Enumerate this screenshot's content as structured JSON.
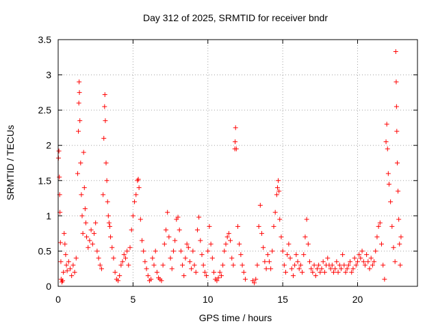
{
  "chart_data": {
    "type": "scatter",
    "title": "Day 312 of 2025, SRMTID for receiver bndr",
    "xlabel": "GPS time / hours",
    "ylabel": "SRMTID / TECUs",
    "xlim": [
      0,
      24
    ],
    "ylim": [
      0,
      3.5
    ],
    "x_ticks": [
      0,
      5,
      10,
      15,
      20
    ],
    "x_tick_labels": [
      "0",
      "5",
      "10",
      "15",
      "20"
    ],
    "y_ticks": [
      0,
      0.5,
      1,
      1.5,
      2,
      2.5,
      3,
      3.5
    ],
    "y_tick_labels": [
      "0",
      "0.5",
      "1",
      "1.5",
      "2",
      "2.5",
      "3",
      "3.5"
    ],
    "grid": true,
    "marker": "+",
    "marker_color": "#ff0000",
    "series": [
      {
        "name": "SRMTID",
        "points": [
          [
            0.02,
            1.82
          ],
          [
            0.05,
            1.92
          ],
          [
            0.08,
            1.55
          ],
          [
            0.1,
            1.3
          ],
          [
            0.12,
            1.05
          ],
          [
            0.15,
            0.62
          ],
          [
            0.18,
            0.35
          ],
          [
            0.2,
            0.1
          ],
          [
            0.25,
            0.06
          ],
          [
            0.3,
            0.08
          ],
          [
            0.35,
            0.2
          ],
          [
            0.4,
            0.75
          ],
          [
            0.45,
            0.6
          ],
          [
            0.5,
            0.45
          ],
          [
            0.55,
            0.3
          ],
          [
            0.6,
            0.22
          ],
          [
            0.7,
            0.35
          ],
          [
            0.8,
            0.25
          ],
          [
            0.9,
            0.15
          ],
          [
            1.0,
            0.3
          ],
          [
            1.1,
            0.2
          ],
          [
            1.2,
            0.4
          ],
          [
            1.3,
            1.6
          ],
          [
            1.35,
            2.2
          ],
          [
            1.38,
            2.6
          ],
          [
            1.4,
            2.9
          ],
          [
            1.42,
            2.75
          ],
          [
            1.45,
            2.35
          ],
          [
            1.5,
            1.75
          ],
          [
            1.55,
            1.3
          ],
          [
            1.6,
            1.0
          ],
          [
            1.65,
            0.75
          ],
          [
            1.7,
            1.9
          ],
          [
            1.75,
            1.4
          ],
          [
            1.8,
            1.1
          ],
          [
            1.85,
            0.9
          ],
          [
            1.9,
            0.7
          ],
          [
            2.0,
            0.55
          ],
          [
            2.1,
            0.65
          ],
          [
            2.2,
            0.8
          ],
          [
            2.3,
            0.6
          ],
          [
            2.4,
            0.75
          ],
          [
            2.5,
            0.9
          ],
          [
            2.6,
            0.5
          ],
          [
            2.7,
            0.4
          ],
          [
            2.8,
            0.3
          ],
          [
            2.9,
            0.25
          ],
          [
            3.0,
            1.3
          ],
          [
            3.05,
            2.1
          ],
          [
            3.1,
            2.55
          ],
          [
            3.12,
            2.72
          ],
          [
            3.15,
            2.35
          ],
          [
            3.2,
            1.75
          ],
          [
            3.25,
            1.5
          ],
          [
            3.3,
            1.2
          ],
          [
            3.35,
            1.0
          ],
          [
            3.4,
            0.9
          ],
          [
            3.45,
            0.85
          ],
          [
            3.5,
            0.7
          ],
          [
            3.6,
            0.55
          ],
          [
            3.7,
            0.4
          ],
          [
            3.8,
            0.2
          ],
          [
            3.9,
            0.1
          ],
          [
            4.0,
            0.08
          ],
          [
            4.1,
            0.15
          ],
          [
            4.2,
            0.3
          ],
          [
            4.3,
            0.35
          ],
          [
            4.4,
            0.45
          ],
          [
            4.5,
            0.4
          ],
          [
            4.6,
            0.5
          ],
          [
            4.7,
            0.3
          ],
          [
            4.8,
            0.55
          ],
          [
            4.9,
            0.8
          ],
          [
            5.0,
            1.0
          ],
          [
            5.1,
            1.2
          ],
          [
            5.2,
            1.3
          ],
          [
            5.3,
            1.5
          ],
          [
            5.35,
            1.52
          ],
          [
            5.4,
            1.4
          ],
          [
            5.5,
            0.95
          ],
          [
            5.6,
            0.65
          ],
          [
            5.7,
            0.5
          ],
          [
            5.8,
            0.35
          ],
          [
            5.9,
            0.25
          ],
          [
            6.0,
            0.15
          ],
          [
            6.1,
            0.08
          ],
          [
            6.2,
            0.1
          ],
          [
            6.3,
            0.4
          ],
          [
            6.4,
            0.3
          ],
          [
            6.5,
            0.5
          ],
          [
            6.6,
            0.2
          ],
          [
            6.7,
            0.12
          ],
          [
            6.8,
            0.1
          ],
          [
            6.9,
            0.08
          ],
          [
            7.0,
            0.3
          ],
          [
            7.1,
            0.6
          ],
          [
            7.2,
            0.8
          ],
          [
            7.3,
            1.05
          ],
          [
            7.4,
            0.7
          ],
          [
            7.5,
            0.4
          ],
          [
            7.6,
            0.25
          ],
          [
            7.7,
            0.5
          ],
          [
            7.8,
            0.65
          ],
          [
            7.9,
            0.95
          ],
          [
            8.0,
            0.98
          ],
          [
            8.1,
            0.8
          ],
          [
            8.2,
            0.5
          ],
          [
            8.3,
            0.3
          ],
          [
            8.4,
            0.15
          ],
          [
            8.5,
            0.4
          ],
          [
            8.6,
            0.6
          ],
          [
            8.7,
            0.55
          ],
          [
            8.8,
            0.35
          ],
          [
            8.9,
            0.25
          ],
          [
            9.0,
            0.5
          ],
          [
            9.1,
            0.3
          ],
          [
            9.2,
            0.2
          ],
          [
            9.3,
            0.8
          ],
          [
            9.4,
            0.98
          ],
          [
            9.5,
            0.65
          ],
          [
            9.6,
            0.45
          ],
          [
            9.7,
            0.3
          ],
          [
            9.8,
            0.2
          ],
          [
            9.9,
            0.15
          ],
          [
            10.0,
            0.5
          ],
          [
            10.1,
            0.85
          ],
          [
            10.2,
            0.6
          ],
          [
            10.3,
            0.4
          ],
          [
            10.4,
            0.2
          ],
          [
            10.5,
            0.1
          ],
          [
            10.6,
            0.08
          ],
          [
            10.7,
            0.12
          ],
          [
            10.8,
            0.2
          ],
          [
            10.9,
            0.15
          ],
          [
            11.0,
            0.3
          ],
          [
            11.1,
            0.5
          ],
          [
            11.2,
            0.6
          ],
          [
            11.3,
            0.7
          ],
          [
            11.4,
            0.75
          ],
          [
            11.5,
            0.65
          ],
          [
            11.6,
            0.4
          ],
          [
            11.7,
            0.3
          ],
          [
            11.8,
            1.95
          ],
          [
            11.82,
            2.05
          ],
          [
            11.85,
            2.25
          ],
          [
            11.9,
            1.95
          ],
          [
            12.0,
            0.85
          ],
          [
            12.1,
            0.6
          ],
          [
            12.2,
            0.45
          ],
          [
            12.3,
            0.3
          ],
          [
            12.4,
            0.2
          ],
          [
            12.5,
            0.1
          ],
          [
            13.0,
            0.08
          ],
          [
            13.1,
            0.05
          ],
          [
            13.2,
            0.1
          ],
          [
            13.3,
            0.3
          ],
          [
            13.4,
            0.85
          ],
          [
            13.5,
            1.15
          ],
          [
            13.6,
            0.75
          ],
          [
            13.7,
            0.55
          ],
          [
            13.8,
            0.35
          ],
          [
            13.9,
            0.25
          ],
          [
            14.0,
            0.45
          ],
          [
            14.1,
            0.35
          ],
          [
            14.2,
            0.25
          ],
          [
            14.3,
            0.5
          ],
          [
            14.4,
            0.85
          ],
          [
            14.5,
            1.05
          ],
          [
            14.6,
            1.3
          ],
          [
            14.65,
            1.4
          ],
          [
            14.7,
            1.5
          ],
          [
            14.75,
            1.35
          ],
          [
            14.8,
            0.95
          ],
          [
            14.9,
            0.7
          ],
          [
            15.0,
            0.5
          ],
          [
            15.1,
            0.3
          ],
          [
            15.2,
            0.2
          ],
          [
            15.3,
            0.45
          ],
          [
            15.4,
            0.6
          ],
          [
            15.5,
            0.4
          ],
          [
            15.6,
            0.25
          ],
          [
            15.7,
            0.15
          ],
          [
            15.8,
            0.3
          ],
          [
            15.9,
            0.45
          ],
          [
            16.0,
            0.35
          ],
          [
            16.1,
            0.25
          ],
          [
            16.2,
            0.3
          ],
          [
            16.3,
            0.2
          ],
          [
            16.4,
            0.45
          ],
          [
            16.5,
            0.7
          ],
          [
            16.6,
            0.95
          ],
          [
            16.7,
            0.6
          ],
          [
            16.8,
            0.35
          ],
          [
            16.9,
            0.25
          ],
          [
            17.0,
            0.2
          ],
          [
            17.1,
            0.3
          ],
          [
            17.2,
            0.15
          ],
          [
            17.3,
            0.25
          ],
          [
            17.4,
            0.3
          ],
          [
            17.5,
            0.2
          ],
          [
            17.6,
            0.25
          ],
          [
            17.7,
            0.35
          ],
          [
            17.8,
            0.2
          ],
          [
            17.9,
            0.3
          ],
          [
            18.0,
            0.4
          ],
          [
            18.1,
            0.3
          ],
          [
            18.2,
            0.25
          ],
          [
            18.3,
            0.3
          ],
          [
            18.4,
            0.2
          ],
          [
            18.5,
            0.25
          ],
          [
            18.6,
            0.35
          ],
          [
            18.7,
            0.2
          ],
          [
            18.8,
            0.3
          ],
          [
            18.9,
            0.25
          ],
          [
            19.0,
            0.45
          ],
          [
            19.1,
            0.3
          ],
          [
            19.2,
            0.2
          ],
          [
            19.3,
            0.25
          ],
          [
            19.4,
            0.3
          ],
          [
            19.5,
            0.35
          ],
          [
            19.6,
            0.2
          ],
          [
            19.7,
            0.25
          ],
          [
            19.8,
            0.4
          ],
          [
            19.9,
            0.3
          ],
          [
            20.0,
            0.35
          ],
          [
            20.1,
            0.45
          ],
          [
            20.2,
            0.4
          ],
          [
            20.3,
            0.5
          ],
          [
            20.4,
            0.35
          ],
          [
            20.5,
            0.3
          ],
          [
            20.6,
            0.45
          ],
          [
            20.7,
            0.35
          ],
          [
            20.8,
            0.25
          ],
          [
            20.9,
            0.4
          ],
          [
            21.0,
            0.3
          ],
          [
            21.1,
            0.35
          ],
          [
            21.2,
            0.5
          ],
          [
            21.3,
            0.7
          ],
          [
            21.4,
            0.85
          ],
          [
            21.5,
            0.9
          ],
          [
            21.6,
            0.6
          ],
          [
            21.7,
            0.3
          ],
          [
            21.8,
            0.1
          ],
          [
            21.9,
            2.05
          ],
          [
            21.95,
            2.3
          ],
          [
            22.0,
            1.95
          ],
          [
            22.05,
            1.6
          ],
          [
            22.1,
            1.45
          ],
          [
            22.2,
            1.2
          ],
          [
            22.3,
            0.85
          ],
          [
            22.4,
            0.55
          ],
          [
            22.5,
            0.35
          ],
          [
            22.55,
            3.33
          ],
          [
            22.58,
            2.9
          ],
          [
            22.6,
            2.55
          ],
          [
            22.62,
            2.2
          ],
          [
            22.65,
            1.75
          ],
          [
            22.7,
            1.35
          ],
          [
            22.75,
            0.95
          ],
          [
            22.8,
            0.6
          ],
          [
            22.85,
            0.3
          ],
          [
            22.9,
            0.7
          ]
        ]
      }
    ]
  }
}
